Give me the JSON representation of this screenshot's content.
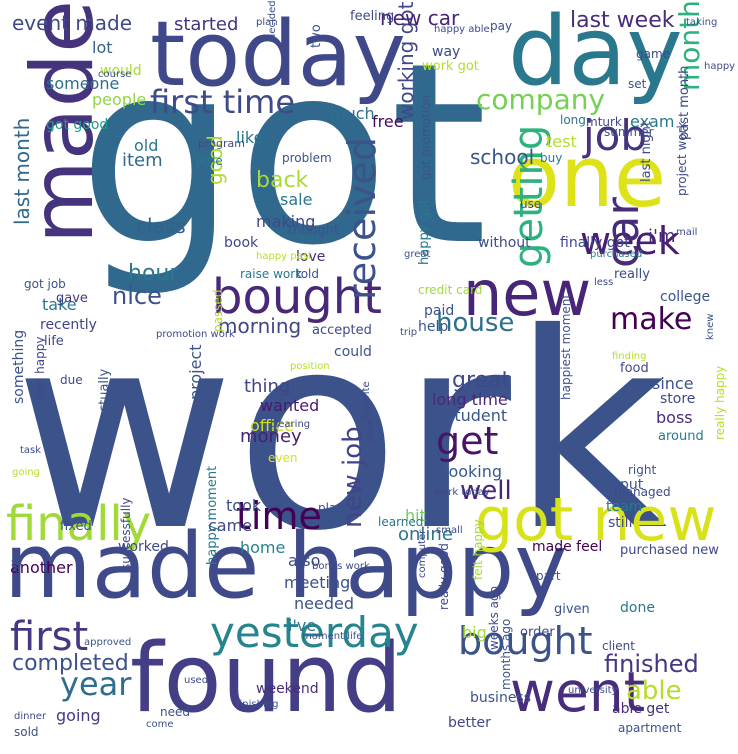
{
  "words": [
    {
      "text": "work",
      "color": "#3b528b"
    },
    {
      "text": "got",
      "color": "#31688e"
    },
    {
      "text": "made happy",
      "color": "#3e4a89"
    },
    {
      "text": "found",
      "color": "#433e85"
    },
    {
      "text": "today",
      "color": "#3f4889"
    },
    {
      "text": "day",
      "color": "#2a788e"
    },
    {
      "text": "one",
      "color": "#dde318"
    },
    {
      "text": "made",
      "color": "#46337e"
    },
    {
      "text": "new",
      "color": "#482677"
    },
    {
      "text": "bought",
      "color": "#482878"
    },
    {
      "text": "got new",
      "color": "#d8e219"
    },
    {
      "text": "went",
      "color": "#472d7b"
    },
    {
      "text": "yesterday",
      "color": "#25848e"
    },
    {
      "text": "finally",
      "color": "#a0da39"
    },
    {
      "text": "time",
      "color": "#440154"
    },
    {
      "text": "received",
      "color": "#3b528b"
    },
    {
      "text": "getting",
      "color": "#2db27d"
    },
    {
      "text": "first time",
      "color": "#3e4a89"
    },
    {
      "text": "week",
      "color": "#481f70"
    },
    {
      "text": "job",
      "color": "#46337e"
    },
    {
      "text": "month",
      "color": "#2db27d"
    },
    {
      "text": "car",
      "color": "#472c7a"
    },
    {
      "text": "get",
      "color": "#481467"
    },
    {
      "text": "first",
      "color": "#453781"
    },
    {
      "text": "year",
      "color": "#2e6e8e"
    },
    {
      "text": "bought",
      "color": "#3b528b"
    },
    {
      "text": "company",
      "color": "#75d054"
    },
    {
      "text": "good",
      "color": "#addc30"
    },
    {
      "text": "last month",
      "color": "#31688e"
    },
    {
      "text": "new job",
      "color": "#414487"
    },
    {
      "text": "working got",
      "color": "#3f4889"
    },
    {
      "text": "house",
      "color": "#2d708e"
    },
    {
      "text": "make",
      "color": "#440154"
    },
    {
      "text": "completed",
      "color": "#3b528b"
    },
    {
      "text": "finished",
      "color": "#453781"
    },
    {
      "text": "able",
      "color": "#b5de2b"
    },
    {
      "text": "well",
      "color": "#482475"
    },
    {
      "text": "great",
      "color": "#3e4989"
    },
    {
      "text": "hour",
      "color": "#2a788e"
    },
    {
      "text": "nice",
      "color": "#3b528b"
    },
    {
      "text": "morning",
      "color": "#404688"
    },
    {
      "text": "school",
      "color": "#39568c"
    },
    {
      "text": "class",
      "color": "#34608d"
    },
    {
      "text": "back",
      "color": "#a8db34"
    },
    {
      "text": "sale",
      "color": "#2a788e"
    },
    {
      "text": "making",
      "color": "#3f4889"
    },
    {
      "text": "event made",
      "color": "#3e4a89"
    },
    {
      "text": "started",
      "color": "#46337e"
    },
    {
      "text": "new car",
      "color": "#482475"
    },
    {
      "text": "last week",
      "color": "#472d7b"
    },
    {
      "text": "lot",
      "color": "#355f8d"
    },
    {
      "text": "would",
      "color": "#a8db34"
    },
    {
      "text": "someone",
      "color": "#2e6e8e"
    },
    {
      "text": "people",
      "color": "#90d743"
    },
    {
      "text": "got good",
      "color": "#1f9a8a"
    },
    {
      "text": "item",
      "color": "#306a8e"
    },
    {
      "text": "old",
      "color": "#2a788e"
    },
    {
      "text": "like",
      "color": "#2a788e"
    },
    {
      "text": "free",
      "color": "#46085c"
    },
    {
      "text": "much",
      "color": "#2e6e8e"
    },
    {
      "text": "money",
      "color": "#482071"
    },
    {
      "text": "thing",
      "color": "#404688"
    },
    {
      "text": "wanted",
      "color": "#481a6c"
    },
    {
      "text": "office",
      "color": "#d0e11c"
    },
    {
      "text": "project",
      "color": "#39568c"
    },
    {
      "text": "took",
      "color": "#3b528b"
    },
    {
      "text": "came",
      "color": "#404688"
    },
    {
      "text": "home",
      "color": "#26828e"
    },
    {
      "text": "also",
      "color": "#3e4a89"
    },
    {
      "text": "meeting",
      "color": "#3b528b"
    },
    {
      "text": "needed",
      "color": "#3b528b"
    },
    {
      "text": "i've",
      "color": "#2a788e"
    },
    {
      "text": "online",
      "color": "#2c738e"
    },
    {
      "text": "hit",
      "color": "#6ece58"
    },
    {
      "text": "student",
      "color": "#39568c"
    },
    {
      "text": "long time",
      "color": "#482878"
    },
    {
      "text": "since",
      "color": "#3b528b"
    },
    {
      "text": "store",
      "color": "#3e4989"
    },
    {
      "text": "boss",
      "color": "#472d7b"
    },
    {
      "text": "looking",
      "color": "#38598c"
    },
    {
      "text": "put",
      "color": "#39568c"
    },
    {
      "text": "team",
      "color": "#2a788e"
    },
    {
      "text": "still",
      "color": "#404688"
    },
    {
      "text": "made feel",
      "color": "#440154"
    },
    {
      "text": "purchased new",
      "color": "#3e4989"
    },
    {
      "text": "done",
      "color": "#2a788e"
    },
    {
      "text": "given",
      "color": "#3b528b"
    },
    {
      "text": "big",
      "color": "#a2da37"
    },
    {
      "text": "order",
      "color": "#3e4989"
    },
    {
      "text": "business",
      "color": "#3b528b"
    },
    {
      "text": "better",
      "color": "#404688"
    },
    {
      "text": "apartment",
      "color": "#3b528b"
    },
    {
      "text": "able get",
      "color": "#472d7b"
    },
    {
      "text": "going",
      "color": "#443983"
    },
    {
      "text": "weekend",
      "color": "#472c7a"
    },
    {
      "text": "another",
      "color": "#440154"
    },
    {
      "text": "worked",
      "color": "#3e4a89"
    },
    {
      "text": "fixed",
      "color": "#3b528b"
    },
    {
      "text": "recently",
      "color": "#404688"
    },
    {
      "text": "take",
      "color": "#2a788e"
    },
    {
      "text": "life",
      "color": "#3e4a89"
    },
    {
      "text": "gave",
      "color": "#453781"
    },
    {
      "text": "got job",
      "color": "#3b528b"
    },
    {
      "text": "college",
      "color": "#3b528b"
    },
    {
      "text": "help",
      "color": "#39568c"
    },
    {
      "text": "paid",
      "color": "#3b528b"
    },
    {
      "text": "really",
      "color": "#3e4a89"
    },
    {
      "text": "i'm",
      "color": "#472d7b"
    },
    {
      "text": "credit card",
      "color": "#a0da39"
    },
    {
      "text": "happy got",
      "color": "#2a788e"
    },
    {
      "text": "finally got",
      "color": "#3e4989"
    },
    {
      "text": "without",
      "color": "#3e4989"
    },
    {
      "text": "thought",
      "color": "#3b528b"
    },
    {
      "text": "book",
      "color": "#3e4989"
    },
    {
      "text": "love",
      "color": "#472c7a"
    },
    {
      "text": "raise work",
      "color": "#2a788e"
    },
    {
      "text": "told",
      "color": "#3b528b"
    },
    {
      "text": "accepted",
      "color": "#3e4a89"
    },
    {
      "text": "could",
      "color": "#3b528b"
    },
    {
      "text": "due",
      "color": "#3e4a89"
    },
    {
      "text": "something",
      "color": "#3b528b"
    },
    {
      "text": "feel happy",
      "color": "#3e4989"
    },
    {
      "text": "happy moment",
      "color": "#2a788e"
    },
    {
      "text": "successfully",
      "color": "#3e4989"
    },
    {
      "text": "test",
      "color": "#b5de2b"
    },
    {
      "text": "exam",
      "color": "#2a788e"
    },
    {
      "text": "past month",
      "color": "#3e4989"
    },
    {
      "text": "summer",
      "color": "#3b528b"
    },
    {
      "text": "buy",
      "color": "#2a788e"
    },
    {
      "text": "last night",
      "color": "#3e4989"
    },
    {
      "text": "project work",
      "color": "#3e4989"
    },
    {
      "text": "use",
      "color": "#3b528b"
    },
    {
      "text": "mturk",
      "color": "#3e4989"
    },
    {
      "text": "set",
      "color": "#3b528b"
    },
    {
      "text": "game",
      "color": "#3e4989"
    },
    {
      "text": "pay",
      "color": "#3b528b"
    },
    {
      "text": "feeling",
      "color": "#3e4989"
    },
    {
      "text": "two",
      "color": "#3b528b"
    },
    {
      "text": "way",
      "color": "#3e4989"
    },
    {
      "text": "work got",
      "color": "#b5de2b"
    },
    {
      "text": "long",
      "color": "#2a788e"
    },
    {
      "text": "problem",
      "color": "#3b528b"
    },
    {
      "text": "little",
      "color": "#2a788e"
    },
    {
      "text": "program",
      "color": "#3e4989"
    },
    {
      "text": "got promotion",
      "color": "#3b528b"
    },
    {
      "text": "promotion work",
      "color": "#3e4989"
    },
    {
      "text": "passed",
      "color": "#b5de2b"
    },
    {
      "text": "actually",
      "color": "#3b528b"
    },
    {
      "text": "weeks ago",
      "color": "#3e4989"
    },
    {
      "text": "months ago",
      "color": "#3b528b"
    },
    {
      "text": "felt happy",
      "color": "#a0da39"
    },
    {
      "text": "really good",
      "color": "#3e4989"
    },
    {
      "text": "happiest moment",
      "color": "#3b528b"
    },
    {
      "text": "around",
      "color": "#2a788e"
    },
    {
      "text": "right",
      "color": "#3b528b"
    },
    {
      "text": "managed",
      "color": "#3e4989"
    },
    {
      "text": "really happy",
      "color": "#b5de2b"
    },
    {
      "text": "food",
      "color": "#3e4989"
    },
    {
      "text": "need",
      "color": "#3b528b"
    },
    {
      "text": "learned",
      "color": "#2a788e"
    },
    {
      "text": "place",
      "color": "#3b528b"
    },
    {
      "text": "even",
      "color": "#d8e219"
    },
    {
      "text": "work today",
      "color": "#3e4989"
    },
    {
      "text": "small",
      "color": "#3e4989"
    },
    {
      "text": "sold",
      "color": "#3b528b"
    },
    {
      "text": "vacation",
      "color": "#3e4989"
    },
    {
      "text": "approved",
      "color": "#3b528b"
    },
    {
      "text": "dinner",
      "color": "#3e4989"
    },
    {
      "text": "university",
      "color": "#3b528b"
    },
    {
      "text": "client",
      "color": "#3e4989"
    },
    {
      "text": "part",
      "color": "#3b528b"
    },
    {
      "text": "computer",
      "color": "#3e4989"
    },
    {
      "text": "finding",
      "color": "#b5de2b"
    },
    {
      "text": "issue",
      "color": "#3e4989"
    },
    {
      "text": "purchased",
      "color": "#2a788e"
    },
    {
      "text": "trip",
      "color": "#3b528b"
    },
    {
      "text": "position",
      "color": "#b5de2b"
    },
    {
      "text": "mail",
      "color": "#3e4989"
    },
    {
      "text": "course",
      "color": "#3b528b"
    },
    {
      "text": "plan",
      "color": "#3e4989"
    },
    {
      "text": "decided",
      "color": "#3b528b"
    },
    {
      "text": "happy able",
      "color": "#3e4989"
    },
    {
      "text": "taking",
      "color": "#3b528b"
    },
    {
      "text": "happy past",
      "color": "#b5de2b"
    },
    {
      "text": "bonus work",
      "color": "#3e4989"
    },
    {
      "text": "moment life",
      "color": "#3b528b"
    },
    {
      "text": "favorite",
      "color": "#3e4989"
    },
    {
      "text": "finishing",
      "color": "#3b528b"
    },
    {
      "text": "used",
      "color": "#3e4989"
    },
    {
      "text": "come",
      "color": "#3b528b"
    },
    {
      "text": "less",
      "color": "#3e4989"
    },
    {
      "text": "knew",
      "color": "#3b528b"
    },
    {
      "text": "task",
      "color": "#3e4989"
    },
    {
      "text": "going",
      "color": "#b5de2b"
    },
    {
      "text": "clearing",
      "color": "#3e4989"
    },
    {
      "text": "great",
      "color": "#3b528b"
    },
    {
      "text": "happy",
      "color": "#3e4989"
    }
  ]
}
